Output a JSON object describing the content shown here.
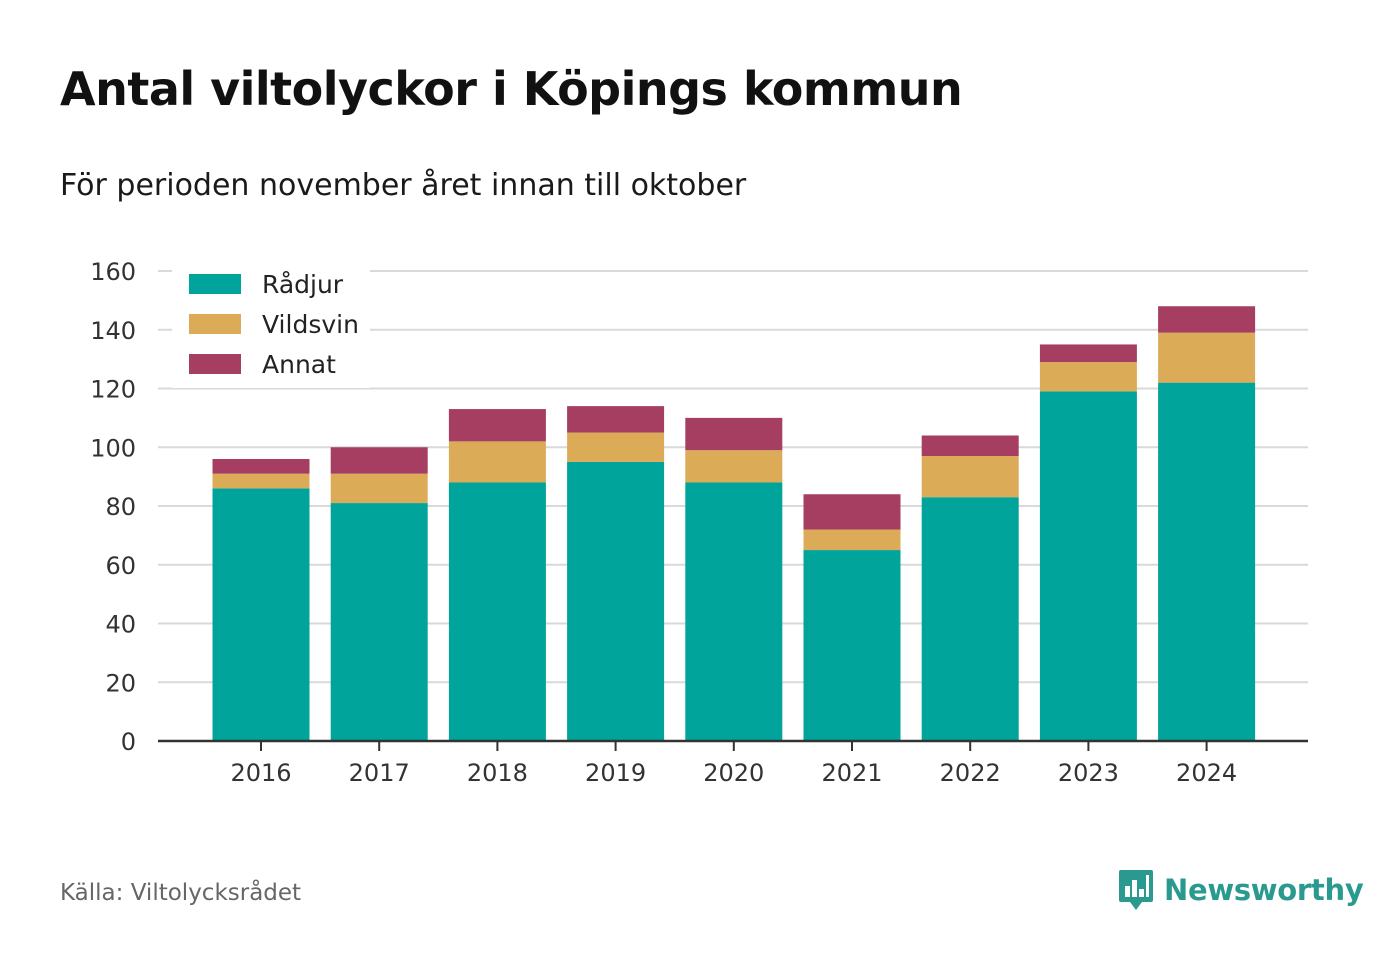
{
  "title": "Antal viltolyckor i Köpings kommun",
  "subtitle": "För perioden november året innan till oktober",
  "source": "Källa: Viltolycksrådet",
  "brand": "Newsworthy",
  "colors": {
    "radjur": "#00a49a",
    "vildsvin": "#dcab58",
    "annat": "#a63e62",
    "grid": "#d9d9d9",
    "axis": "#333333",
    "brand": "#2a9a90"
  },
  "chart_data": {
    "type": "bar",
    "stacked": true,
    "categories": [
      "2016",
      "2017",
      "2018",
      "2019",
      "2020",
      "2021",
      "2022",
      "2023",
      "2024"
    ],
    "series": [
      {
        "name": "Rådjur",
        "color": "#00a49a",
        "values": [
          86,
          81,
          88,
          95,
          88,
          65,
          83,
          119,
          122
        ]
      },
      {
        "name": "Vildsvin",
        "color": "#dcab58",
        "values": [
          5,
          10,
          14,
          10,
          11,
          7,
          14,
          10,
          17
        ]
      },
      {
        "name": "Annat",
        "color": "#a63e62",
        "values": [
          5,
          9,
          11,
          9,
          11,
          12,
          7,
          6,
          9
        ]
      }
    ],
    "ylim": [
      0,
      160
    ],
    "yticks": [
      0,
      20,
      40,
      60,
      80,
      100,
      120,
      140,
      160
    ],
    "grid": true,
    "legend": "top-left"
  }
}
